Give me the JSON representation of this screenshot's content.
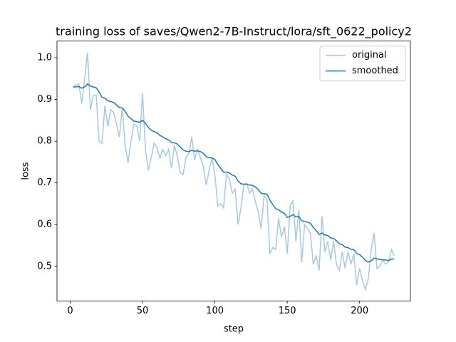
{
  "chart_data": {
    "type": "line",
    "title": "training loss of saves/Qwen2-7B-Instruct/lora/sft_0622_policy2",
    "x_label": "step",
    "y_label": "loss",
    "x": [
      2,
      4,
      6,
      8,
      10,
      12,
      14,
      16,
      18,
      20,
      22,
      24,
      26,
      28,
      30,
      32,
      34,
      36,
      38,
      40,
      42,
      44,
      46,
      48,
      50,
      52,
      54,
      56,
      58,
      60,
      62,
      64,
      66,
      68,
      70,
      72,
      74,
      76,
      78,
      80,
      82,
      84,
      86,
      88,
      90,
      92,
      94,
      96,
      98,
      100,
      102,
      104,
      106,
      108,
      110,
      112,
      114,
      116,
      118,
      120,
      122,
      124,
      126,
      128,
      130,
      132,
      134,
      136,
      138,
      140,
      142,
      144,
      146,
      148,
      150,
      152,
      154,
      156,
      158,
      160,
      162,
      164,
      166,
      168,
      170,
      172,
      174,
      176,
      178,
      180,
      182,
      184,
      186,
      188,
      190,
      192,
      194,
      196,
      198,
      200,
      202,
      204,
      206,
      208,
      210,
      212,
      214,
      216,
      218,
      220,
      222,
      224
    ],
    "series": [
      {
        "name": "original",
        "color": "#a6c9e2",
        "values": [
          0.93,
          0.935,
          0.937,
          0.89,
          0.95,
          1.012,
          0.875,
          0.91,
          0.91,
          0.8,
          0.795,
          0.885,
          0.835,
          0.875,
          0.87,
          0.84,
          0.81,
          0.88,
          0.79,
          0.748,
          0.8,
          0.84,
          0.838,
          0.8,
          0.915,
          0.78,
          0.73,
          0.76,
          0.795,
          0.785,
          0.76,
          0.78,
          0.765,
          0.78,
          0.735,
          0.79,
          0.765,
          0.725,
          0.72,
          0.76,
          0.77,
          0.81,
          0.755,
          0.78,
          0.76,
          0.74,
          0.695,
          0.73,
          0.76,
          0.72,
          0.645,
          0.65,
          0.64,
          0.72,
          0.71,
          0.675,
          0.685,
          0.6,
          0.64,
          0.695,
          0.7,
          0.675,
          0.685,
          0.655,
          0.63,
          0.59,
          0.67,
          0.66,
          0.53,
          0.545,
          0.54,
          0.615,
          0.57,
          0.595,
          0.53,
          0.645,
          0.657,
          0.56,
          0.635,
          0.51,
          0.6,
          0.59,
          0.58,
          0.505,
          0.525,
          0.49,
          0.62,
          0.535,
          0.56,
          0.515,
          0.56,
          0.505,
          0.49,
          0.535,
          0.495,
          0.535,
          0.505,
          0.53,
          0.455,
          0.495,
          0.465,
          0.445,
          0.47,
          0.54,
          0.58,
          0.495,
          0.5,
          0.515,
          0.505,
          0.51,
          0.54,
          0.525
        ]
      },
      {
        "name": "smoothed",
        "color": "#1f77b4",
        "values": [
          0.93,
          0.93,
          0.931,
          0.927,
          0.93,
          0.937,
          0.932,
          0.93,
          0.928,
          0.918,
          0.905,
          0.903,
          0.897,
          0.895,
          0.893,
          0.887,
          0.88,
          0.88,
          0.871,
          0.86,
          0.854,
          0.848,
          0.847,
          0.845,
          0.85,
          0.843,
          0.833,
          0.826,
          0.823,
          0.82,
          0.814,
          0.81,
          0.806,
          0.803,
          0.797,
          0.796,
          0.793,
          0.786,
          0.779,
          0.776,
          0.775,
          0.778,
          0.776,
          0.777,
          0.775,
          0.771,
          0.763,
          0.76,
          0.76,
          0.756,
          0.744,
          0.735,
          0.726,
          0.726,
          0.724,
          0.719,
          0.716,
          0.705,
          0.698,
          0.697,
          0.697,
          0.695,
          0.694,
          0.69,
          0.684,
          0.675,
          0.674,
          0.673,
          0.659,
          0.648,
          0.638,
          0.636,
          0.63,
          0.627,
          0.617,
          0.62,
          0.624,
          0.618,
          0.62,
          0.609,
          0.608,
          0.606,
          0.603,
          0.593,
          0.586,
          0.576,
          0.58,
          0.575,
          0.574,
          0.568,
          0.567,
          0.561,
          0.554,
          0.552,
          0.546,
          0.545,
          0.541,
          0.54,
          0.531,
          0.528,
          0.522,
          0.514,
          0.51,
          0.513,
          0.52,
          0.518,
          0.516,
          0.516,
          0.515,
          0.514,
          0.517,
          0.518
        ]
      }
    ],
    "xlim": [
      -9.1,
      235.1
    ],
    "xticks": [
      0,
      50,
      100,
      150,
      200
    ],
    "ylim": [
      0.417,
      1.04
    ],
    "yticks": [
      0.5,
      0.6,
      0.7,
      0.8,
      0.9,
      {
        "value": 1,
        "label": "1.0"
      }
    ],
    "legend": "upper right",
    "grid": false
  }
}
